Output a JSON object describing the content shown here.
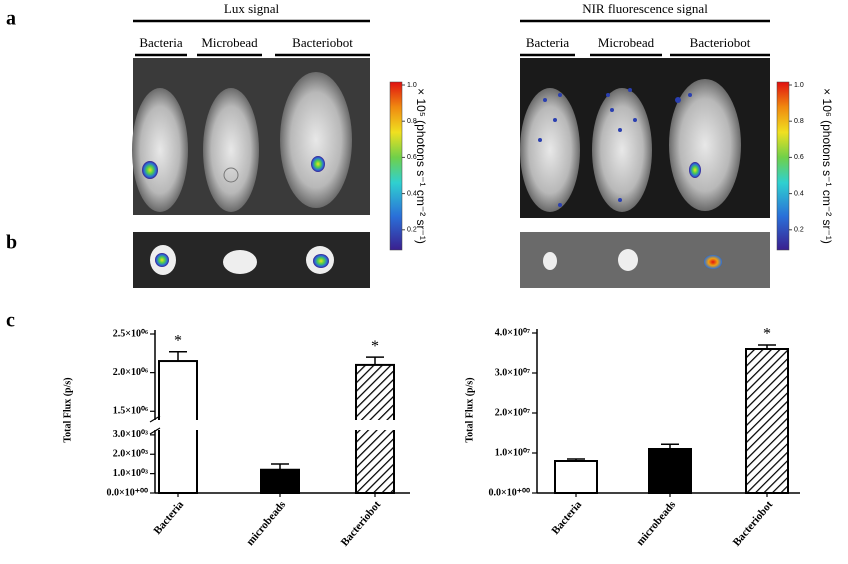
{
  "panel_labels": [
    "a",
    "b",
    "c"
  ],
  "imaging": [
    {
      "title": "Lux signal",
      "groups": [
        "Bacteria",
        "Microbead",
        "Bacteriobot"
      ],
      "colorbar": {
        "label": "× 10⁵ (photons s⁻¹ cm⁻² sr⁻¹)",
        "ticks": [
          {
            "value": 1,
            "label": "1.0"
          },
          0.8,
          0.6,
          0.4,
          0.2
        ]
      }
    },
    {
      "title": "NIR fluorescence signal",
      "groups": [
        "Bacteria",
        "Microbead",
        "Bacteriobot"
      ],
      "colorbar": {
        "label": "× 10⁶ (photons s⁻¹ cm⁻² sr⁻¹)",
        "ticks": [
          {
            "value": 1,
            "label": "1.0"
          },
          0.8,
          0.6,
          0.4,
          0.2
        ]
      }
    }
  ],
  "chart_data": [
    {
      "type": "bar",
      "ylabel": "Total Flux (p/s)",
      "categories": [
        "Bacteria",
        "microbeads",
        "Bacteriobot"
      ],
      "values": [
        2150000,
        1200,
        2100000
      ],
      "errors": [
        120000,
        300,
        100000
      ],
      "significance": [
        "*",
        null,
        "*"
      ],
      "fills": [
        "#ffffff",
        "#000000",
        "hatch"
      ],
      "ylim": [
        0,
        2500000
      ],
      "ybreak": [
        3200,
        1400000
      ],
      "yticks": [
        {
          "value": 0,
          "label": "0.0×10⁺⁰⁰"
        },
        {
          "value": 1000,
          "label": "1.0×10⁰³"
        },
        {
          "value": 2000,
          "label": "2.0×10⁰³"
        },
        {
          "value": 3000,
          "label": "3.0×10⁰³"
        },
        {
          "value": 1500000,
          "label": "1.5×10⁰⁶"
        },
        {
          "value": 2000000,
          "label": "2.0×10⁰⁶"
        },
        {
          "value": 2500000,
          "label": "2.5×10⁰⁶"
        }
      ]
    },
    {
      "type": "bar",
      "ylabel": "Total Flux (p/s)",
      "categories": [
        "Bacteria",
        "microbeads",
        "Bacteriobot"
      ],
      "values": [
        8000000,
        11000000,
        36000000
      ],
      "errors": [
        500000,
        1200000,
        1000000
      ],
      "significance": [
        null,
        null,
        "*"
      ],
      "fills": [
        "#ffffff",
        "#000000",
        "hatch"
      ],
      "ylim": [
        0,
        40000000
      ],
      "yticks": [
        {
          "value": 0,
          "label": "0.0×10⁺⁰⁰"
        },
        {
          "value": 10000000,
          "label": "1.0×10⁰⁷"
        },
        {
          "value": 20000000,
          "label": "2.0×10⁰⁷"
        },
        {
          "value": 30000000,
          "label": "3.0×10⁰⁷"
        },
        {
          "value": 40000000,
          "label": "4.0×10⁰⁷"
        }
      ]
    }
  ]
}
